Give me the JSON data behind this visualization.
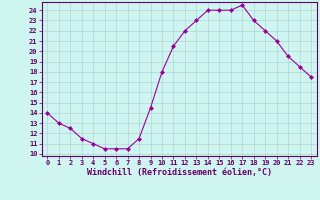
{
  "x": [
    0,
    1,
    2,
    3,
    4,
    5,
    6,
    7,
    8,
    9,
    10,
    11,
    12,
    13,
    14,
    15,
    16,
    17,
    18,
    19,
    20,
    21,
    22,
    23
  ],
  "y": [
    14,
    13,
    12.5,
    11.5,
    11,
    10.5,
    10.5,
    10.5,
    11.5,
    14.5,
    18,
    20.5,
    22,
    23,
    24,
    24,
    24,
    24.5,
    23,
    22,
    21,
    19.5,
    18.5,
    17.5
  ],
  "line_color": "#990099",
  "marker": "D",
  "marker_size": 2,
  "bg_color": "#cef5f0",
  "grid_color": "#aacccc",
  "xlabel": "Windchill (Refroidissement éolien,°C)",
  "xlim_min": -0.5,
  "xlim_max": 23.5,
  "ylim_min": 9.8,
  "ylim_max": 24.8,
  "xticks": [
    0,
    1,
    2,
    3,
    4,
    5,
    6,
    7,
    8,
    9,
    10,
    11,
    12,
    13,
    14,
    15,
    16,
    17,
    18,
    19,
    20,
    21,
    22,
    23
  ],
  "yticks": [
    10,
    11,
    12,
    13,
    14,
    15,
    16,
    17,
    18,
    19,
    20,
    21,
    22,
    23,
    24
  ],
  "tick_fontsize": 5,
  "xlabel_fontsize": 6,
  "tick_color": "#660066",
  "spine_color": "#660066",
  "linewidth": 0.8
}
